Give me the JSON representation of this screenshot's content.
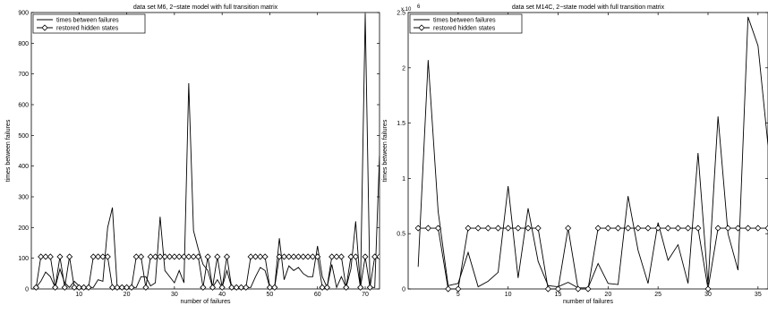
{
  "chart_data": [
    {
      "type": "line",
      "title": "data set M6, 2−state model with full transition matrix",
      "xlabel": "number of failures",
      "ylabel": "times between failures",
      "xlim": [
        0,
        73
      ],
      "ylim": [
        0,
        900
      ],
      "xticks": [
        10,
        20,
        30,
        40,
        50,
        60,
        70
      ],
      "yticks": [
        0,
        100,
        200,
        300,
        400,
        500,
        600,
        700,
        800,
        900
      ],
      "x": [
        1,
        2,
        3,
        4,
        5,
        6,
        7,
        8,
        9,
        10,
        11,
        12,
        13,
        14,
        15,
        16,
        17,
        18,
        19,
        20,
        21,
        22,
        23,
        24,
        25,
        26,
        27,
        28,
        29,
        30,
        31,
        32,
        33,
        34,
        35,
        36,
        37,
        38,
        39,
        40,
        41,
        42,
        43,
        44,
        45,
        46,
        47,
        48,
        49,
        50,
        51,
        52,
        53,
        54,
        55,
        56,
        57,
        58,
        59,
        60,
        61,
        62,
        63,
        64,
        65,
        66,
        67,
        68,
        69,
        70,
        71,
        72,
        73
      ],
      "legend": [
        "times between failures",
        "restored hidden states"
      ],
      "legend_position": "top-left",
      "series": [
        {
          "name": "times between failures",
          "values": [
            5,
            25,
            55,
            40,
            5,
            65,
            20,
            5,
            25,
            10,
            5,
            5,
            5,
            30,
            25,
            200,
            265,
            5,
            10,
            5,
            5,
            5,
            40,
            40,
            10,
            20,
            235,
            60,
            40,
            20,
            60,
            20,
            670,
            190,
            130,
            80,
            60,
            5,
            30,
            5,
            60,
            5,
            5,
            5,
            5,
            5,
            40,
            70,
            60,
            5,
            5,
            165,
            30,
            75,
            60,
            70,
            50,
            40,
            40,
            140,
            40,
            5,
            80,
            5,
            40,
            5,
            65,
            220,
            5,
            895,
            5,
            5,
            435
          ]
        },
        {
          "name": "restored hidden states",
          "marker": "diamond",
          "values": [
            5,
            105,
            105,
            105,
            5,
            105,
            5,
            105,
            5,
            5,
            5,
            5,
            105,
            105,
            105,
            105,
            5,
            5,
            5,
            5,
            5,
            105,
            105,
            5,
            105,
            105,
            105,
            105,
            105,
            105,
            105,
            105,
            105,
            105,
            105,
            5,
            105,
            5,
            105,
            5,
            105,
            5,
            5,
            5,
            5,
            105,
            105,
            105,
            105,
            5,
            5,
            105,
            105,
            105,
            105,
            105,
            105,
            105,
            105,
            105,
            5,
            5,
            105,
            105,
            105,
            5,
            105,
            105,
            5,
            105,
            5,
            105,
            105
          ]
        }
      ]
    },
    {
      "type": "line",
      "title": "data set M14C, 2−state model with full transition matrix",
      "xlabel": "number of failures",
      "ylabel": "times between failures",
      "y_exponent_base": "x 10",
      "y_exponent": "6",
      "xlim": [
        0,
        36
      ],
      "ylim": [
        0,
        2.5
      ],
      "xticks": [
        5,
        10,
        15,
        20,
        25,
        30,
        35
      ],
      "yticks": [
        0,
        0.5,
        1,
        1.5,
        2,
        2.5
      ],
      "x": [
        1,
        2,
        3,
        4,
        5,
        6,
        7,
        8,
        9,
        10,
        11,
        12,
        13,
        14,
        15,
        16,
        17,
        18,
        19,
        20,
        21,
        22,
        23,
        24,
        25,
        26,
        27,
        28,
        29,
        30,
        31,
        32,
        33,
        34,
        35,
        36
      ],
      "legend": [
        "times between failures",
        "restored hidden states"
      ],
      "legend_position": "top-left",
      "series": [
        {
          "name": "times between failures",
          "values": [
            0.2,
            2.07,
            0.7,
            0.03,
            0.05,
            0.33,
            0.02,
            0.07,
            0.15,
            0.93,
            0.1,
            0.73,
            0.25,
            0.03,
            0.02,
            0.06,
            0.01,
            0.01,
            0.23,
            0.05,
            0.04,
            0.84,
            0.35,
            0.05,
            0.6,
            0.26,
            0.4,
            0.05,
            1.23,
            0.04,
            1.56,
            0.5,
            0.17,
            2.46,
            2.2,
            1.3
          ]
        },
        {
          "name": "restored hidden states",
          "marker": "diamond",
          "values": [
            0.55,
            0.55,
            0.55,
            0,
            0,
            0.55,
            0.55,
            0.55,
            0.55,
            0.55,
            0.55,
            0.55,
            0.55,
            0,
            0,
            0.55,
            0,
            0,
            0.55,
            0.55,
            0.55,
            0.55,
            0.55,
            0.55,
            0.55,
            0.55,
            0.55,
            0.55,
            0.55,
            0,
            0.55,
            0.55,
            0.55,
            0.55,
            0.55,
            0.55
          ]
        }
      ]
    }
  ]
}
